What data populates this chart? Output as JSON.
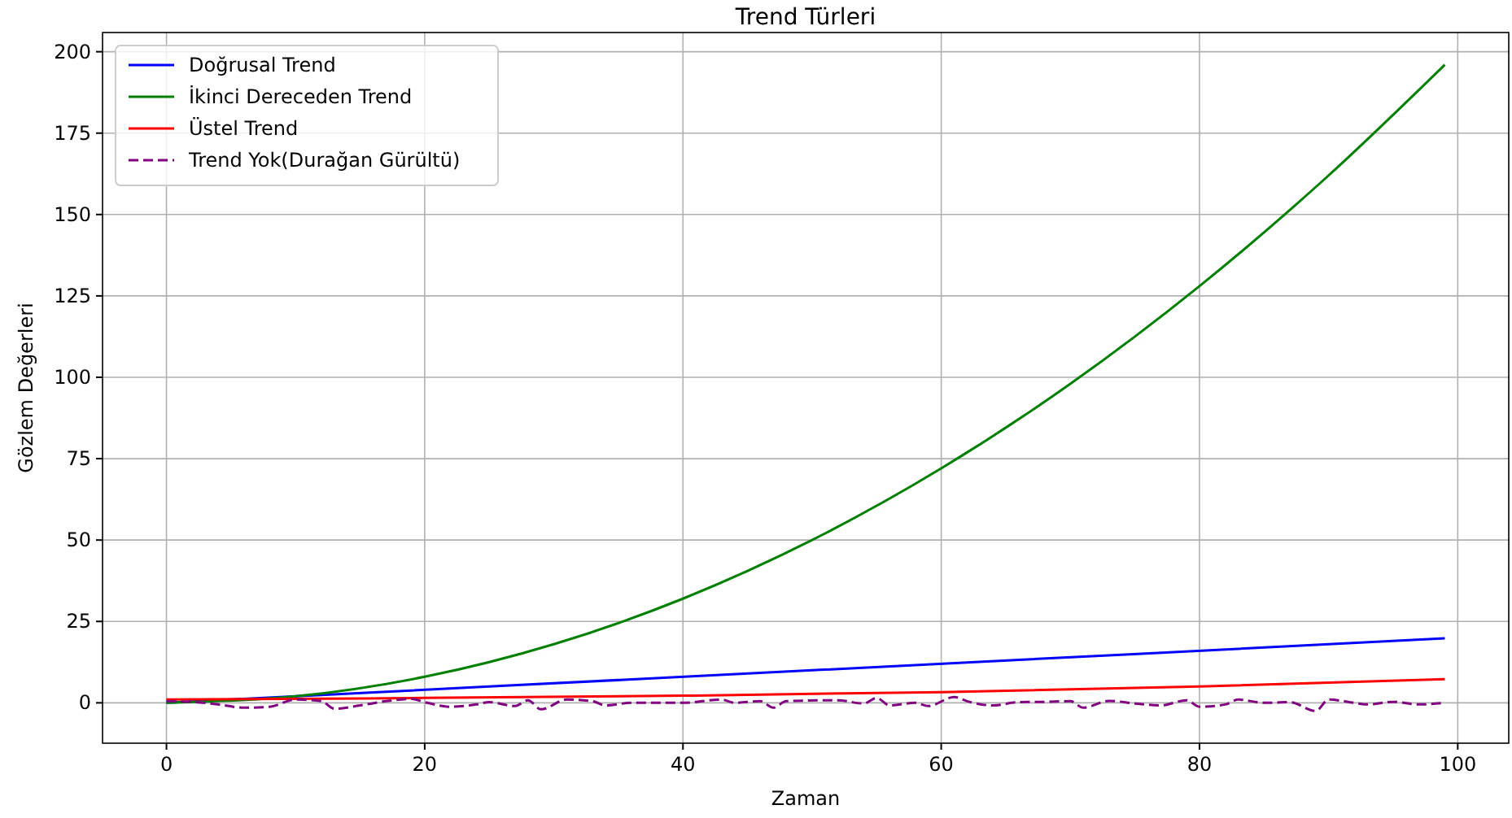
{
  "chart_data": {
    "type": "line",
    "title": "Trend Türleri",
    "xlabel": "Zaman",
    "ylabel": "Gözlem Değerleri",
    "xlim": [
      -4.95,
      103.95
    ],
    "ylim": [
      -12.4,
      205.9
    ],
    "xticks": [
      0,
      20,
      40,
      60,
      80,
      100
    ],
    "yticks": [
      0,
      25,
      50,
      75,
      100,
      125,
      150,
      175,
      200
    ],
    "grid": true,
    "legend": "top left",
    "series": [
      {
        "name": "Doğrusal Trend",
        "color": "#0000ff",
        "x": [
          0,
          50,
          99
        ],
        "values": [
          0,
          10,
          19.8
        ]
      },
      {
        "name": "İkinci Dereceden Trend",
        "color": "#008000",
        "x": [
          0,
          10,
          20,
          30,
          40,
          50,
          60,
          70,
          80,
          90,
          99
        ],
        "values": [
          0,
          2,
          8,
          18,
          32,
          50,
          72,
          98,
          128,
          162,
          196
        ]
      },
      {
        "name": "Üstel Trend",
        "color": "#ff0000",
        "x": [
          0,
          20,
          40,
          60,
          80,
          99
        ],
        "values": [
          1,
          1.5,
          2.2,
          3.3,
          5,
          7.3
        ]
      },
      {
        "name": "Trend Yok(Durağan Gürültü)",
        "color": "#800080",
        "line_style": "dashed",
        "x": [
          0,
          2,
          4,
          6,
          8,
          10,
          12,
          13,
          15,
          17,
          19,
          20,
          22,
          24,
          25,
          27,
          28,
          29,
          31,
          33,
          34,
          36,
          40,
          43,
          44,
          46,
          47,
          48,
          52,
          54,
          55,
          56,
          58,
          59,
          61,
          62,
          64,
          66,
          68,
          70,
          71,
          73,
          75,
          77,
          79,
          80,
          82,
          83,
          85,
          87,
          89,
          90,
          92,
          93,
          95,
          97,
          99
        ],
        "values": [
          0.5,
          0.3,
          -0.5,
          -1.5,
          -1.2,
          1,
          0.5,
          -1.8,
          -0.8,
          0.5,
          1.2,
          0.2,
          -1.2,
          -0.5,
          0.2,
          -1,
          0.8,
          -2,
          1,
          0.5,
          -0.8,
          0,
          0,
          1,
          0,
          0.5,
          -1.5,
          0.5,
          0.8,
          -0.2,
          1.5,
          -0.8,
          0,
          -1,
          1.8,
          0.5,
          -0.8,
          0.2,
          0.3,
          0.5,
          -1.5,
          0.6,
          -0.2,
          -0.8,
          0.8,
          -1.2,
          -0.5,
          1,
          0,
          0.2,
          -2.5,
          1,
          0,
          -0.5,
          0.3,
          -0.5,
          0
        ]
      }
    ]
  }
}
